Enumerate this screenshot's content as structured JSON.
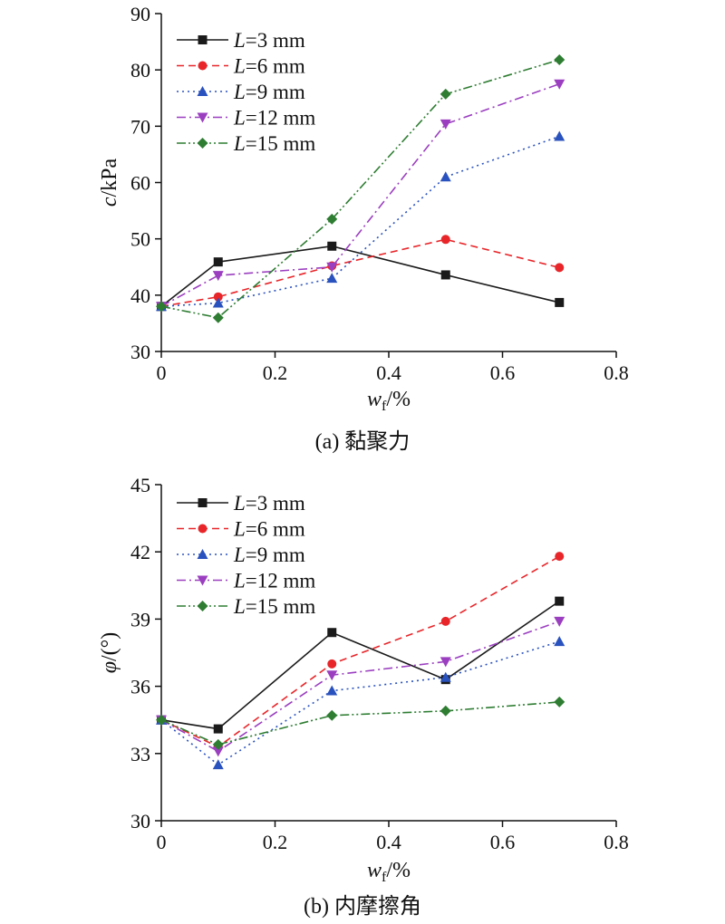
{
  "chart_data": [
    {
      "type": "line",
      "caption": "(a) 黏聚力",
      "ylabel": {
        "italic": "c",
        "rest": "/kPa"
      },
      "xlabel": {
        "italic": "w",
        "sub": "f",
        "rest": "/%"
      },
      "xlim": [
        0,
        0.8
      ],
      "ylim": [
        30,
        90
      ],
      "xticks": [
        "0",
        "0.2",
        "0.4",
        "0.6",
        "0.8"
      ],
      "yticks": [
        "30",
        "40",
        "50",
        "60",
        "70",
        "80",
        "90"
      ],
      "grid": false,
      "legend_position": "top-left",
      "x": [
        0,
        0.1,
        0.3,
        0.5,
        0.7
      ],
      "series": [
        {
          "name": "L=3 mm",
          "name_italic": "L",
          "name_rest": "=3 mm",
          "color": "#1a1a1a",
          "dash": "solid",
          "marker": "square",
          "values": [
            38,
            45.9,
            48.7,
            43.6,
            38.7
          ]
        },
        {
          "name": "L=6 mm",
          "name_italic": "L",
          "name_rest": "=6 mm",
          "color": "#e8262a",
          "dash": "dashed",
          "marker": "circle",
          "values": [
            38,
            39.7,
            45.2,
            49.9,
            44.9
          ]
        },
        {
          "name": "L=9 mm",
          "name_italic": "L",
          "name_rest": "=9 mm",
          "color": "#2a52be",
          "dash": "dotted",
          "marker": "triangle-up",
          "values": [
            38,
            38.6,
            43,
            61,
            68.2
          ]
        },
        {
          "name": "L=12 mm",
          "name_italic": "L",
          "name_rest": "=12 mm",
          "color": "#9b3fc0",
          "dash": "dashdot",
          "marker": "triangle-down",
          "values": [
            38,
            43.5,
            45,
            70.4,
            77.5
          ]
        },
        {
          "name": "L=15 mm",
          "name_italic": "L",
          "name_rest": "=15 mm",
          "color": "#2e7d32",
          "dash": "dashdotdot",
          "marker": "diamond",
          "values": [
            38,
            36,
            53.5,
            75.7,
            81.8
          ]
        }
      ]
    },
    {
      "type": "line",
      "caption": "(b) 内摩擦角",
      "ylabel": {
        "italic": "φ",
        "rest": "/(°)"
      },
      "xlabel": {
        "italic": "w",
        "sub": "f",
        "rest": "/%"
      },
      "xlim": [
        0,
        0.8
      ],
      "ylim": [
        30,
        45
      ],
      "xticks": [
        "0",
        "0.2",
        "0.4",
        "0.6",
        "0.8"
      ],
      "yticks": [
        "30",
        "33",
        "36",
        "39",
        "42",
        "45"
      ],
      "grid": false,
      "legend_position": "top-left",
      "x": [
        0,
        0.1,
        0.3,
        0.5,
        0.7
      ],
      "series": [
        {
          "name": "L=3 mm",
          "name_italic": "L",
          "name_rest": "=3 mm",
          "color": "#1a1a1a",
          "dash": "solid",
          "marker": "square",
          "values": [
            34.5,
            34.1,
            38.4,
            36.3,
            39.8
          ]
        },
        {
          "name": "L=6 mm",
          "name_italic": "L",
          "name_rest": "=6 mm",
          "color": "#e8262a",
          "dash": "dashed",
          "marker": "circle",
          "values": [
            34.5,
            33.3,
            37,
            38.9,
            41.8
          ]
        },
        {
          "name": "L=9 mm",
          "name_italic": "L",
          "name_rest": "=9 mm",
          "color": "#2a52be",
          "dash": "dotted",
          "marker": "triangle-up",
          "values": [
            34.5,
            32.5,
            35.8,
            36.4,
            38
          ]
        },
        {
          "name": "L=12 mm",
          "name_italic": "L",
          "name_rest": "=12 mm",
          "color": "#9b3fc0",
          "dash": "dashdot",
          "marker": "triangle-down",
          "values": [
            34.5,
            33.1,
            36.5,
            37.1,
            38.9
          ]
        },
        {
          "name": "L=15 mm",
          "name_italic": "L",
          "name_rest": "=15 mm",
          "color": "#2e7d32",
          "dash": "dashdotdot",
          "marker": "diamond",
          "values": [
            34.5,
            33.4,
            34.7,
            34.9,
            35.3
          ]
        }
      ]
    }
  ]
}
